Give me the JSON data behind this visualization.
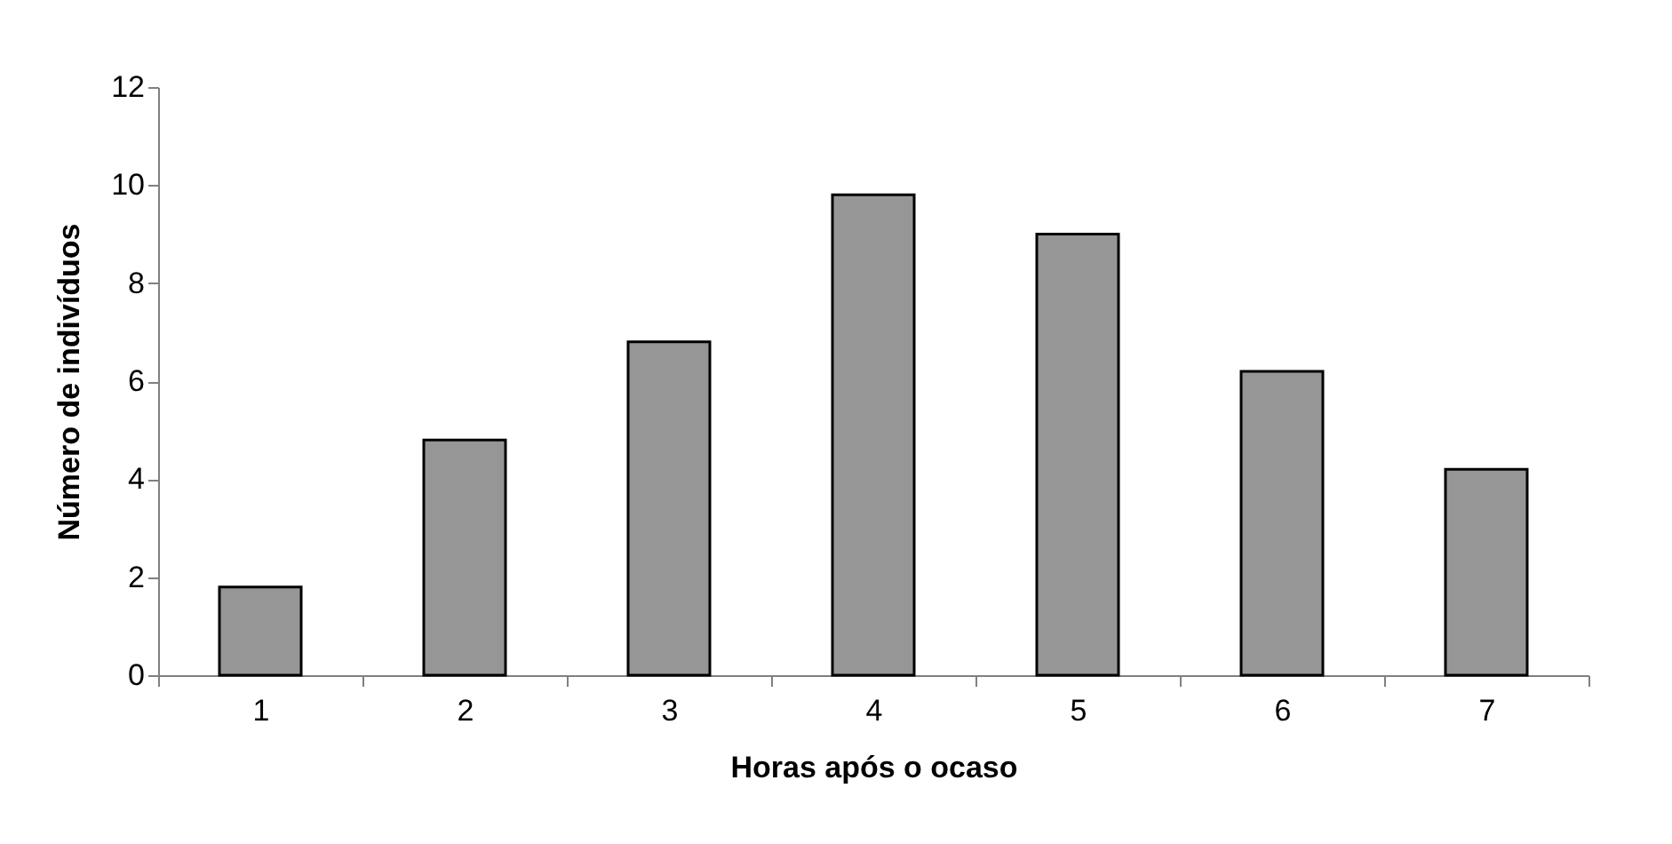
{
  "chart_data": {
    "type": "bar",
    "xlabel": "Horas após o ocaso",
    "ylabel": "Número de indivíduos",
    "categories": [
      "1",
      "2",
      "3",
      "4",
      "5",
      "6",
      "7"
    ],
    "values": [
      1.8,
      4.8,
      6.8,
      9.8,
      9.0,
      6.2,
      4.2
    ],
    "color": "#969696",
    "ylim": [
      0,
      12
    ],
    "yticks": [
      0,
      2,
      4,
      6,
      8,
      10,
      12
    ],
    "grid": false
  }
}
